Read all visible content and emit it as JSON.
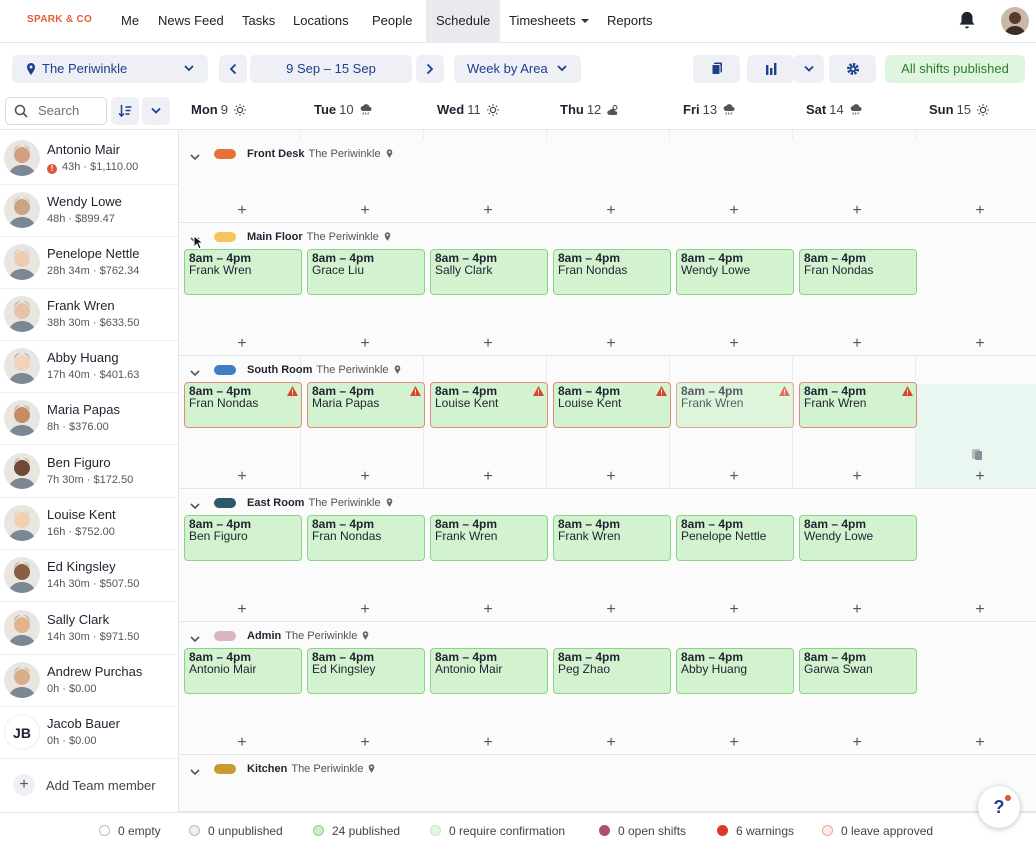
{
  "nav": {
    "logo": "SPARK & CO",
    "items": [
      {
        "label": "Me",
        "active": false
      },
      {
        "label": "News Feed",
        "active": false
      },
      {
        "label": "Tasks",
        "active": false
      },
      {
        "label": "Locations",
        "active": false
      },
      {
        "label": "People",
        "active": false
      },
      {
        "label": "Schedule",
        "active": true
      },
      {
        "label": "Timesheets",
        "active": false,
        "dropdown": true
      },
      {
        "label": "Reports",
        "active": false
      }
    ]
  },
  "toolbar": {
    "location": "The Periwinkle",
    "date_range": "9 Sep – 15 Sep",
    "view": "Week by Area",
    "publish_status": "All shifts published"
  },
  "search": {
    "placeholder": "Search"
  },
  "days": [
    {
      "name": "Mon",
      "num": "9",
      "weather": "sun"
    },
    {
      "name": "Tue",
      "num": "10",
      "weather": "rain"
    },
    {
      "name": "Wed",
      "num": "11",
      "weather": "sun"
    },
    {
      "name": "Thu",
      "num": "12",
      "weather": "cloud-sun"
    },
    {
      "name": "Fri",
      "num": "13",
      "weather": "rain"
    },
    {
      "name": "Sat",
      "num": "14",
      "weather": "rain"
    },
    {
      "name": "Sun",
      "num": "15",
      "weather": "sun"
    }
  ],
  "members": [
    {
      "name": "Antonio Mair",
      "info": "43h · $1,110.00",
      "warning": true,
      "warning_glyph": "!"
    },
    {
      "name": "Wendy Lowe",
      "info": "48h · $899.47"
    },
    {
      "name": "Penelope Nettle",
      "info": "28h 34m · $762.34"
    },
    {
      "name": "Frank Wren",
      "info": "38h 30m · $633.50"
    },
    {
      "name": "Abby Huang",
      "info": "17h 40m · $401.63"
    },
    {
      "name": "Maria Papas",
      "info": "8h · $376.00"
    },
    {
      "name": "Ben Figuro",
      "info": "7h 30m · $172.50"
    },
    {
      "name": "Louise Kent",
      "info": "16h · $752.00"
    },
    {
      "name": "Ed Kingsley",
      "info": "14h 30m · $507.50"
    },
    {
      "name": "Sally Clark",
      "info": "14h 30m · $971.50"
    },
    {
      "name": "Andrew Purchas",
      "info": "0h · $0.00"
    },
    {
      "name": "Jacob Bauer",
      "info": "0h · $0.00",
      "initials": "JB"
    }
  ],
  "add_member_label": "Add Team member",
  "areas": [
    {
      "name": "Front Desk",
      "location": "The Periwinkle",
      "color": "#e8713a",
      "shifts": []
    },
    {
      "name": "Main Floor",
      "location": "The Periwinkle",
      "color": "#f6c55a",
      "shifts": [
        {
          "time": "8am – 4pm",
          "person": "Frank Wren"
        },
        {
          "time": "8am – 4pm",
          "person": "Grace Liu"
        },
        {
          "time": "8am – 4pm",
          "person": "Sally Clark"
        },
        {
          "time": "8am – 4pm",
          "person": "Fran Nondas"
        },
        {
          "time": "8am – 4pm",
          "person": "Wendy Lowe"
        },
        {
          "time": "8am – 4pm",
          "person": "Fran Nondas"
        }
      ]
    },
    {
      "name": "South Room",
      "location": "The Periwinkle",
      "color": "#3f7fc4",
      "shifts": [
        {
          "time": "8am – 4pm",
          "person": "Fran Nondas",
          "warning": true
        },
        {
          "time": "8am – 4pm",
          "person": "Maria Papas",
          "warning": true
        },
        {
          "time": "8am – 4pm",
          "person": "Louise Kent",
          "warning": true
        },
        {
          "time": "8am – 4pm",
          "person": "Louise Kent",
          "warning": true
        },
        {
          "time": "8am – 4pm",
          "person": "Frank Wren",
          "warning": true,
          "faded": true
        },
        {
          "time": "8am – 4pm",
          "person": "Frank Wren",
          "warning": true
        }
      ]
    },
    {
      "name": "East Room",
      "location": "The Periwinkle",
      "color": "#2d5a6b",
      "shifts": [
        {
          "time": "8am – 4pm",
          "person": "Ben Figuro"
        },
        {
          "time": "8am – 4pm",
          "person": "Fran Nondas"
        },
        {
          "time": "8am – 4pm",
          "person": "Frank Wren"
        },
        {
          "time": "8am – 4pm",
          "person": "Frank Wren"
        },
        {
          "time": "8am – 4pm",
          "person": "Penelope Nettle"
        },
        {
          "time": "8am – 4pm",
          "person": "Wendy Lowe"
        }
      ]
    },
    {
      "name": "Admin",
      "location": "The Periwinkle",
      "color": "#d8b6bd",
      "shifts": [
        {
          "time": "8am – 4pm",
          "person": "Antonio Mair"
        },
        {
          "time": "8am – 4pm",
          "person": "Ed Kingsley"
        },
        {
          "time": "8am – 4pm",
          "person": "Antonio Mair"
        },
        {
          "time": "8am – 4pm",
          "person": "Peg Zhao"
        },
        {
          "time": "8am – 4pm",
          "person": "Abby Huang"
        },
        {
          "time": "8am – 4pm",
          "person": "Garwa Swan"
        }
      ]
    },
    {
      "name": "Kitchen",
      "location": "The Periwinkle",
      "color": "#c99a2e",
      "shifts": []
    }
  ],
  "add_shift_glyph": "+",
  "footer": [
    {
      "label": "0 empty",
      "color": "#ffffff",
      "border": "#bbbbbb"
    },
    {
      "label": "0 unpublished",
      "color": "#f0f0f0",
      "border": "#bbbbbb"
    },
    {
      "label": "24 published",
      "color": "#c9eec6",
      "border": "#8dd28a"
    },
    {
      "label": "0 require confirmation",
      "color": "#e2f5e0",
      "border": "#c4e6c1"
    },
    {
      "label": "0 open shifts",
      "color": "#b0506a",
      "border": "#b0506a"
    },
    {
      "label": "6 warnings",
      "color": "#d93a2b",
      "border": "#d93a2b"
    },
    {
      "label": "0 leave approved",
      "color": "#fdecea",
      "border": "#e7a59c"
    }
  ],
  "help_label": "?"
}
